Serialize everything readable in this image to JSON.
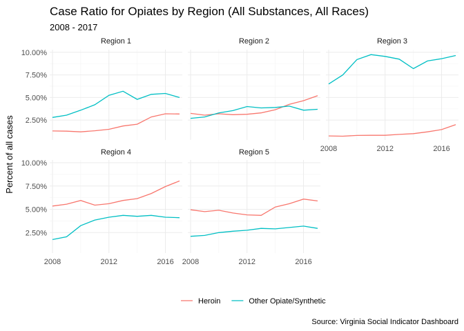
{
  "chart_data": {
    "type": "line",
    "title": "Case Ratio for Opiates by Region (All Substances, All Races)",
    "subtitle": "2008 - 2017",
    "ylabel": "Percent of all cases",
    "xlabel": "",
    "caption": "Source: Virginia Social Indicator Dashboard",
    "x": [
      2008,
      2009,
      2010,
      2011,
      2012,
      2013,
      2014,
      2015,
      2016,
      2017
    ],
    "x_ticks": [
      "2008",
      "2012",
      "2016"
    ],
    "y_ticks": [
      "2.50%",
      "5.00%",
      "7.50%",
      "10.00%"
    ],
    "y_tick_values": [
      2.5,
      5.0,
      7.5,
      10.0
    ],
    "ylim": [
      0.3,
      10.3
    ],
    "grid": true,
    "legend_position": "bottom",
    "series_meta": [
      {
        "name": "Heroin",
        "color": "#f8766d"
      },
      {
        "name": "Other Opiate/Synthetic",
        "color": "#00bfc4"
      }
    ],
    "panels": [
      {
        "label": "Region 1",
        "series": [
          {
            "name": "Heroin",
            "values": [
              1.3,
              1.28,
              1.2,
              1.32,
              1.48,
              1.85,
              2.05,
              2.85,
              3.2,
              3.18
            ]
          },
          {
            "name": "Other Opiate/Synthetic",
            "values": [
              2.8,
              3.05,
              3.6,
              4.2,
              5.25,
              5.7,
              4.8,
              5.35,
              5.45,
              5.0
            ]
          }
        ]
      },
      {
        "label": "Region 2",
        "series": [
          {
            "name": "Heroin",
            "values": [
              3.25,
              3.05,
              3.2,
              3.1,
              3.15,
              3.3,
              3.65,
              4.25,
              4.65,
              5.2
            ]
          },
          {
            "name": "Other Opiate/Synthetic",
            "values": [
              2.7,
              2.85,
              3.3,
              3.55,
              4.0,
              3.85,
              3.9,
              4.05,
              3.6,
              3.7
            ]
          }
        ]
      },
      {
        "label": "Region 3",
        "series": [
          {
            "name": "Heroin",
            "values": [
              0.75,
              0.72,
              0.8,
              0.82,
              0.82,
              0.92,
              1.0,
              1.2,
              1.45,
              2.0
            ]
          },
          {
            "name": "Other Opiate/Synthetic",
            "values": [
              6.5,
              7.5,
              9.2,
              9.75,
              9.55,
              9.25,
              8.2,
              9.05,
              9.3,
              9.65
            ]
          }
        ]
      },
      {
        "label": "Region 4",
        "series": [
          {
            "name": "Heroin",
            "values": [
              5.35,
              5.55,
              5.95,
              5.45,
              5.6,
              5.95,
              6.15,
              6.7,
              7.45,
              8.05
            ]
          },
          {
            "name": "Other Opiate/Synthetic",
            "values": [
              1.75,
              2.05,
              3.25,
              3.85,
              4.15,
              4.35,
              4.25,
              4.35,
              4.15,
              4.1
            ]
          }
        ]
      },
      {
        "label": "Region 5",
        "series": [
          {
            "name": "Heroin",
            "values": [
              4.95,
              4.75,
              4.9,
              4.6,
              4.4,
              4.35,
              5.25,
              5.6,
              6.1,
              5.9
            ]
          },
          {
            "name": "Other Opiate/Synthetic",
            "values": [
              2.1,
              2.2,
              2.5,
              2.65,
              2.75,
              2.95,
              2.9,
              3.05,
              3.2,
              2.95
            ]
          }
        ]
      }
    ]
  }
}
